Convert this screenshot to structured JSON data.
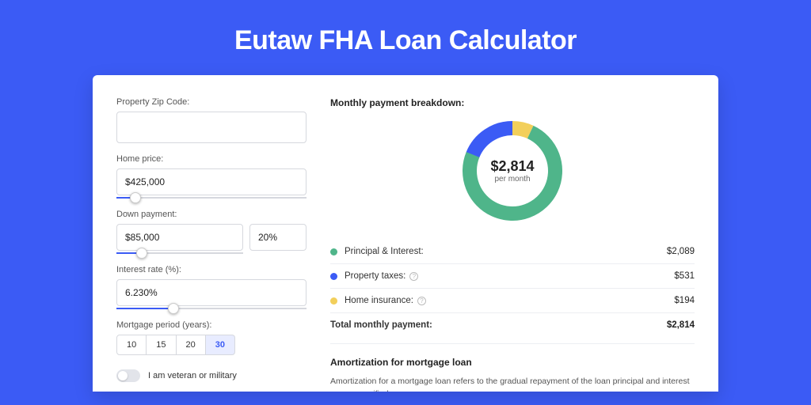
{
  "page": {
    "title": "Eutaw FHA Loan Calculator",
    "accent_color": "#3b5bf5",
    "background_color": "#3b5bf5",
    "card_background": "#ffffff"
  },
  "form": {
    "zip": {
      "label": "Property Zip Code:",
      "value": ""
    },
    "home_price": {
      "label": "Home price:",
      "value": "$425,000",
      "slider_percent": 10
    },
    "down_payment": {
      "label": "Down payment:",
      "value": "$85,000",
      "percent_value": "20%",
      "slider_percent": 20
    },
    "interest_rate": {
      "label": "Interest rate (%):",
      "value": "6.230%",
      "slider_percent": 30
    },
    "mortgage_period": {
      "label": "Mortgage period (years):",
      "options": [
        "10",
        "15",
        "20",
        "30"
      ],
      "selected": "30"
    },
    "veteran": {
      "label": "I am veteran or military",
      "checked": false
    }
  },
  "breakdown": {
    "title": "Monthly payment breakdown:",
    "donut": {
      "center_amount": "$2,814",
      "center_sub": "per month",
      "segments": [
        {
          "label": "Principal & Interest",
          "color": "#4fb58a",
          "amount": "$2,089",
          "percent": 74.2
        },
        {
          "label": "Property taxes",
          "color": "#3b5bf5",
          "amount": "$531",
          "percent": 18.9,
          "has_info": true
        },
        {
          "label": "Home insurance",
          "color": "#f2cf5b",
          "amount": "$194",
          "percent": 6.9,
          "has_info": true
        }
      ],
      "stroke_width": 18,
      "radius": 54,
      "size": 126
    },
    "rows": [
      {
        "dot_color": "#4fb58a",
        "label": "Principal & Interest:",
        "amount": "$2,089"
      },
      {
        "dot_color": "#3b5bf5",
        "label": "Property taxes:",
        "amount": "$531",
        "has_info": true
      },
      {
        "dot_color": "#f2cf5b",
        "label": "Home insurance:",
        "amount": "$194",
        "has_info": true
      }
    ],
    "total": {
      "label": "Total monthly payment:",
      "amount": "$2,814"
    }
  },
  "amortization": {
    "title": "Amortization for mortgage loan",
    "text": "Amortization for a mortgage loan refers to the gradual repayment of the loan principal and interest over a specified"
  }
}
